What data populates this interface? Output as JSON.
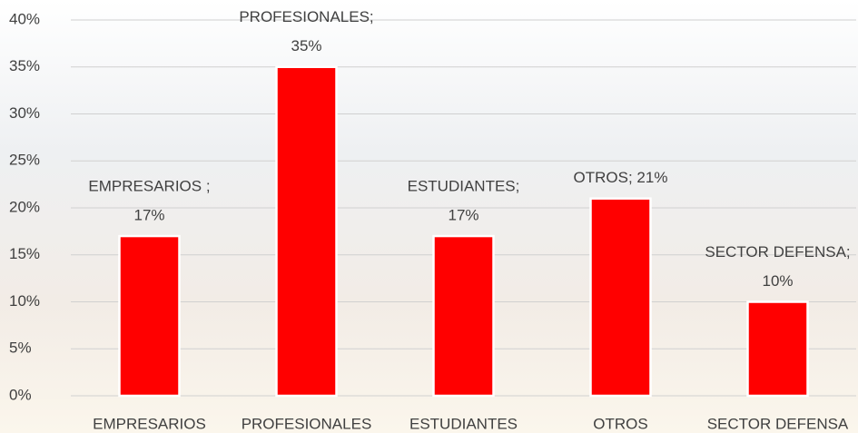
{
  "chart_data": {
    "type": "bar",
    "categories": [
      "EMPRESARIOS",
      "PROFESIONALES",
      "ESTUDIANTES",
      "OTROS",
      "SECTOR DEFENSA"
    ],
    "values": [
      17,
      35,
      17,
      21,
      10
    ],
    "value_labels": [
      [
        "EMPRESARIOS ;",
        "17%"
      ],
      [
        "PROFESIONALES;",
        "35%"
      ],
      [
        "ESTUDIANTES;",
        "17%"
      ],
      [
        "OTROS; 21%"
      ],
      [
        "SECTOR DEFENSA;",
        "10%"
      ]
    ],
    "color": "#ff0000",
    "ylim": [
      0,
      40
    ],
    "yticks": [
      {
        "value": 0,
        "label": "0%"
      },
      {
        "value": 5,
        "label": "5%"
      },
      {
        "value": 10,
        "label": "10%"
      },
      {
        "value": 15,
        "label": "15%"
      },
      {
        "value": 20,
        "label": "20%"
      },
      {
        "value": 25,
        "label": "25%"
      },
      {
        "value": 30,
        "label": "30%"
      },
      {
        "value": 35,
        "label": "35%"
      },
      {
        "value": 40,
        "label": "40%"
      }
    ],
    "grid": true
  }
}
